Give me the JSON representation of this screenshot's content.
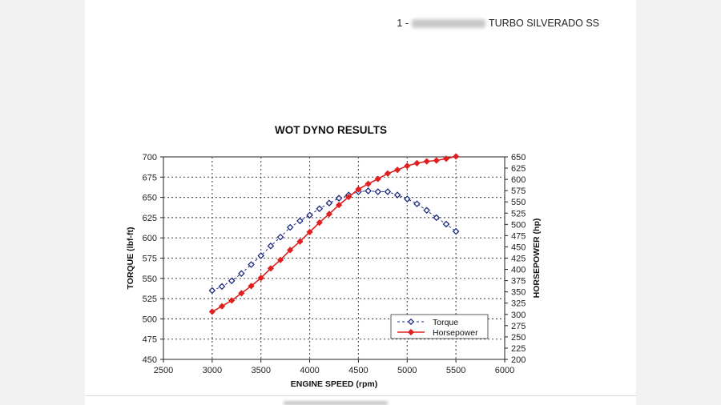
{
  "header": {
    "prefix": "1 -",
    "suffix": "TURBO SILVERADO SS"
  },
  "chart_data": {
    "type": "line",
    "title": "WOT DYNO RESULTS",
    "xlabel": "ENGINE SPEED (rpm)",
    "ylabel_left": "TORQUE (lbf-ft)",
    "ylabel_right": "HORSEPOWER (hp)",
    "xlim": [
      2500,
      6000
    ],
    "ylim_left": [
      450,
      700
    ],
    "ylim_right": [
      200,
      650
    ],
    "x_ticks": [
      "2500",
      "3000",
      "3500",
      "4000",
      "4500",
      "5000",
      "5500",
      "6000"
    ],
    "y_left_ticks": [
      "450",
      "475",
      "500",
      "525",
      "550",
      "575",
      "600",
      "625",
      "650",
      "675",
      "700"
    ],
    "y_right_ticks": [
      "200",
      "225",
      "250",
      "275",
      "300",
      "325",
      "350",
      "375",
      "400",
      "425",
      "450",
      "475",
      "500",
      "525",
      "550",
      "575",
      "600",
      "625",
      "650"
    ],
    "grid": true,
    "legend_position": "bottom-right",
    "x": [
      3000,
      3100,
      3200,
      3300,
      3400,
      3500,
      3600,
      3700,
      3800,
      3900,
      4000,
      4100,
      4200,
      4300,
      4400,
      4500,
      4600,
      4700,
      4800,
      4900,
      5000,
      5100,
      5200,
      5300,
      5400,
      5500
    ],
    "series": [
      {
        "name": "Torque",
        "axis": "left",
        "color": "#1f2d80",
        "marker": "diamond-open",
        "values": [
          535,
          540,
          547,
          556,
          567,
          578,
          590,
          601,
          613,
          621,
          628,
          636,
          643,
          649,
          653,
          657,
          658,
          657,
          657,
          653,
          648,
          642,
          634,
          625,
          617,
          608
        ]
      },
      {
        "name": "Horsepower",
        "axis": "right",
        "color": "#e02020",
        "marker": "diamond-filled",
        "values": [
          306,
          318,
          331,
          347,
          363,
          381,
          402,
          421,
          443,
          462,
          483,
          504,
          523,
          543,
          561,
          578,
          590,
          601,
          613,
          621,
          630,
          636,
          640,
          642,
          646,
          651
        ]
      }
    ]
  }
}
